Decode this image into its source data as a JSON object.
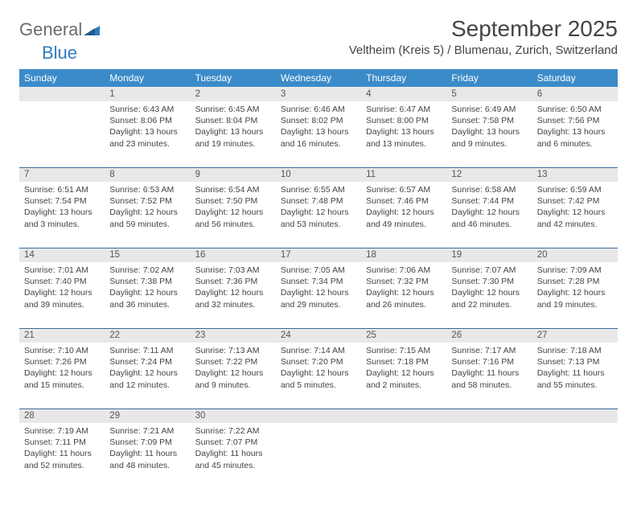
{
  "brand": {
    "text1": "General",
    "text2": "Blue"
  },
  "title": "September 2025",
  "location": "Veltheim (Kreis 5) / Blumenau, Zurich, Switzerland",
  "colors": {
    "header_bg": "#3b8bc9",
    "header_text": "#ffffff",
    "daynum_bg": "#e8e8e8",
    "daynum_text": "#555555",
    "rule": "#3b6a9a",
    "body_text": "#444444",
    "logo_gray": "#6b6b6b",
    "logo_blue": "#2f7bbf"
  },
  "typography": {
    "title_fontsize": 28,
    "location_fontsize": 15,
    "dayhead_fontsize": 12,
    "daynum_fontsize": 11.5,
    "cell_fontsize": 10.5
  },
  "day_headers": [
    "Sunday",
    "Monday",
    "Tuesday",
    "Wednesday",
    "Thursday",
    "Friday",
    "Saturday"
  ],
  "weeks": [
    {
      "nums": [
        "",
        "1",
        "2",
        "3",
        "4",
        "5",
        "6"
      ],
      "cells": [
        null,
        {
          "sunrise": "Sunrise: 6:43 AM",
          "sunset": "Sunset: 8:06 PM",
          "daylight": "Daylight: 13 hours and 23 minutes."
        },
        {
          "sunrise": "Sunrise: 6:45 AM",
          "sunset": "Sunset: 8:04 PM",
          "daylight": "Daylight: 13 hours and 19 minutes."
        },
        {
          "sunrise": "Sunrise: 6:46 AM",
          "sunset": "Sunset: 8:02 PM",
          "daylight": "Daylight: 13 hours and 16 minutes."
        },
        {
          "sunrise": "Sunrise: 6:47 AM",
          "sunset": "Sunset: 8:00 PM",
          "daylight": "Daylight: 13 hours and 13 minutes."
        },
        {
          "sunrise": "Sunrise: 6:49 AM",
          "sunset": "Sunset: 7:58 PM",
          "daylight": "Daylight: 13 hours and 9 minutes."
        },
        {
          "sunrise": "Sunrise: 6:50 AM",
          "sunset": "Sunset: 7:56 PM",
          "daylight": "Daylight: 13 hours and 6 minutes."
        }
      ]
    },
    {
      "nums": [
        "7",
        "8",
        "9",
        "10",
        "11",
        "12",
        "13"
      ],
      "cells": [
        {
          "sunrise": "Sunrise: 6:51 AM",
          "sunset": "Sunset: 7:54 PM",
          "daylight": "Daylight: 13 hours and 3 minutes."
        },
        {
          "sunrise": "Sunrise: 6:53 AM",
          "sunset": "Sunset: 7:52 PM",
          "daylight": "Daylight: 12 hours and 59 minutes."
        },
        {
          "sunrise": "Sunrise: 6:54 AM",
          "sunset": "Sunset: 7:50 PM",
          "daylight": "Daylight: 12 hours and 56 minutes."
        },
        {
          "sunrise": "Sunrise: 6:55 AM",
          "sunset": "Sunset: 7:48 PM",
          "daylight": "Daylight: 12 hours and 53 minutes."
        },
        {
          "sunrise": "Sunrise: 6:57 AM",
          "sunset": "Sunset: 7:46 PM",
          "daylight": "Daylight: 12 hours and 49 minutes."
        },
        {
          "sunrise": "Sunrise: 6:58 AM",
          "sunset": "Sunset: 7:44 PM",
          "daylight": "Daylight: 12 hours and 46 minutes."
        },
        {
          "sunrise": "Sunrise: 6:59 AM",
          "sunset": "Sunset: 7:42 PM",
          "daylight": "Daylight: 12 hours and 42 minutes."
        }
      ]
    },
    {
      "nums": [
        "14",
        "15",
        "16",
        "17",
        "18",
        "19",
        "20"
      ],
      "cells": [
        {
          "sunrise": "Sunrise: 7:01 AM",
          "sunset": "Sunset: 7:40 PM",
          "daylight": "Daylight: 12 hours and 39 minutes."
        },
        {
          "sunrise": "Sunrise: 7:02 AM",
          "sunset": "Sunset: 7:38 PM",
          "daylight": "Daylight: 12 hours and 36 minutes."
        },
        {
          "sunrise": "Sunrise: 7:03 AM",
          "sunset": "Sunset: 7:36 PM",
          "daylight": "Daylight: 12 hours and 32 minutes."
        },
        {
          "sunrise": "Sunrise: 7:05 AM",
          "sunset": "Sunset: 7:34 PM",
          "daylight": "Daylight: 12 hours and 29 minutes."
        },
        {
          "sunrise": "Sunrise: 7:06 AM",
          "sunset": "Sunset: 7:32 PM",
          "daylight": "Daylight: 12 hours and 26 minutes."
        },
        {
          "sunrise": "Sunrise: 7:07 AM",
          "sunset": "Sunset: 7:30 PM",
          "daylight": "Daylight: 12 hours and 22 minutes."
        },
        {
          "sunrise": "Sunrise: 7:09 AM",
          "sunset": "Sunset: 7:28 PM",
          "daylight": "Daylight: 12 hours and 19 minutes."
        }
      ]
    },
    {
      "nums": [
        "21",
        "22",
        "23",
        "24",
        "25",
        "26",
        "27"
      ],
      "cells": [
        {
          "sunrise": "Sunrise: 7:10 AM",
          "sunset": "Sunset: 7:26 PM",
          "daylight": "Daylight: 12 hours and 15 minutes."
        },
        {
          "sunrise": "Sunrise: 7:11 AM",
          "sunset": "Sunset: 7:24 PM",
          "daylight": "Daylight: 12 hours and 12 minutes."
        },
        {
          "sunrise": "Sunrise: 7:13 AM",
          "sunset": "Sunset: 7:22 PM",
          "daylight": "Daylight: 12 hours and 9 minutes."
        },
        {
          "sunrise": "Sunrise: 7:14 AM",
          "sunset": "Sunset: 7:20 PM",
          "daylight": "Daylight: 12 hours and 5 minutes."
        },
        {
          "sunrise": "Sunrise: 7:15 AM",
          "sunset": "Sunset: 7:18 PM",
          "daylight": "Daylight: 12 hours and 2 minutes."
        },
        {
          "sunrise": "Sunrise: 7:17 AM",
          "sunset": "Sunset: 7:16 PM",
          "daylight": "Daylight: 11 hours and 58 minutes."
        },
        {
          "sunrise": "Sunrise: 7:18 AM",
          "sunset": "Sunset: 7:13 PM",
          "daylight": "Daylight: 11 hours and 55 minutes."
        }
      ]
    },
    {
      "nums": [
        "28",
        "29",
        "30",
        "",
        "",
        "",
        ""
      ],
      "cells": [
        {
          "sunrise": "Sunrise: 7:19 AM",
          "sunset": "Sunset: 7:11 PM",
          "daylight": "Daylight: 11 hours and 52 minutes."
        },
        {
          "sunrise": "Sunrise: 7:21 AM",
          "sunset": "Sunset: 7:09 PM",
          "daylight": "Daylight: 11 hours and 48 minutes."
        },
        {
          "sunrise": "Sunrise: 7:22 AM",
          "sunset": "Sunset: 7:07 PM",
          "daylight": "Daylight: 11 hours and 45 minutes."
        },
        null,
        null,
        null,
        null
      ]
    }
  ]
}
